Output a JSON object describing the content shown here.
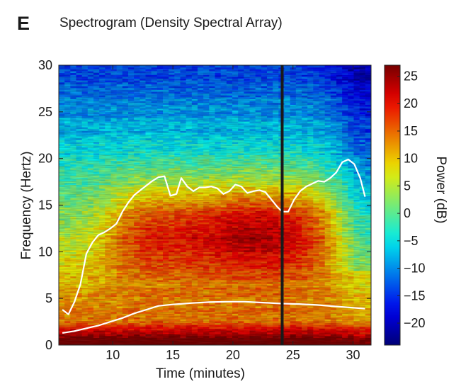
{
  "panel_label": "E",
  "chart_data": {
    "type": "heatmap",
    "title": "Spectrogram (Density Spectral Array)",
    "xlabel": "Time (minutes)",
    "ylabel": "Frequency (Hertz)",
    "colorbar_label": "Power (dB)",
    "xlim": [
      5.5,
      31.5
    ],
    "ylim": [
      0,
      30
    ],
    "clim": [
      -24,
      27
    ],
    "x_ticks": [
      10,
      15,
      20,
      25,
      30
    ],
    "y_ticks": [
      0,
      5,
      10,
      15,
      20,
      25,
      30
    ],
    "colorbar_ticks": [
      25,
      20,
      15,
      10,
      5,
      0,
      -5,
      -10,
      -15,
      -20
    ],
    "colormap": "jet",
    "grid": false,
    "vertical_marker": {
      "x": 24.1,
      "color": "#1a1a1a"
    },
    "overlay_color": "#ffffff",
    "series": [
      {
        "points": [
          [
            5.8,
            3.8
          ],
          [
            6.3,
            3.3
          ],
          [
            6.8,
            4.6
          ],
          [
            7.3,
            6.5
          ],
          [
            7.8,
            9.8
          ],
          [
            8.3,
            11.0
          ],
          [
            8.8,
            11.8
          ],
          [
            9.3,
            12.1
          ],
          [
            9.8,
            12.5
          ],
          [
            10.3,
            13.0
          ],
          [
            10.8,
            14.3
          ],
          [
            11.3,
            15.3
          ],
          [
            11.8,
            16.1
          ],
          [
            12.3,
            16.6
          ],
          [
            12.8,
            17.1
          ],
          [
            13.3,
            17.6
          ],
          [
            13.8,
            18.0
          ],
          [
            14.3,
            18.1
          ],
          [
            14.8,
            16.0
          ],
          [
            15.3,
            16.2
          ],
          [
            15.7,
            17.9
          ],
          [
            16.2,
            17.0
          ],
          [
            16.7,
            16.5
          ],
          [
            17.2,
            16.9
          ],
          [
            17.7,
            16.9
          ],
          [
            18.2,
            17.0
          ],
          [
            18.7,
            16.8
          ],
          [
            19.2,
            16.2
          ],
          [
            19.7,
            16.5
          ],
          [
            20.2,
            17.2
          ],
          [
            20.7,
            17.0
          ],
          [
            21.2,
            16.3
          ],
          [
            21.7,
            16.5
          ],
          [
            22.2,
            16.6
          ],
          [
            22.7,
            16.4
          ],
          [
            23.2,
            15.6
          ],
          [
            23.7,
            14.8
          ],
          [
            24.1,
            14.3
          ],
          [
            24.6,
            14.3
          ],
          [
            25.1,
            15.6
          ],
          [
            25.6,
            16.5
          ],
          [
            26.1,
            17.0
          ],
          [
            26.6,
            17.3
          ],
          [
            27.1,
            17.6
          ],
          [
            27.6,
            17.5
          ],
          [
            28.1,
            17.9
          ],
          [
            28.6,
            18.5
          ],
          [
            29.1,
            19.6
          ],
          [
            29.6,
            19.9
          ],
          [
            30.1,
            19.4
          ],
          [
            30.6,
            17.9
          ],
          [
            31.0,
            15.9
          ]
        ]
      },
      {
        "points": [
          [
            5.8,
            1.3
          ],
          [
            6.8,
            1.5
          ],
          [
            7.8,
            1.8
          ],
          [
            8.8,
            2.1
          ],
          [
            9.8,
            2.5
          ],
          [
            10.8,
            2.9
          ],
          [
            11.8,
            3.4
          ],
          [
            12.8,
            3.8
          ],
          [
            13.8,
            4.2
          ],
          [
            15.0,
            4.35
          ],
          [
            16.5,
            4.5
          ],
          [
            18.0,
            4.6
          ],
          [
            19.5,
            4.65
          ],
          [
            21.0,
            4.65
          ],
          [
            22.5,
            4.55
          ],
          [
            24.0,
            4.45
          ],
          [
            25.5,
            4.4
          ],
          [
            27.0,
            4.3
          ],
          [
            28.5,
            4.15
          ],
          [
            30.0,
            4.0
          ],
          [
            31.0,
            3.9
          ]
        ]
      }
    ]
  }
}
